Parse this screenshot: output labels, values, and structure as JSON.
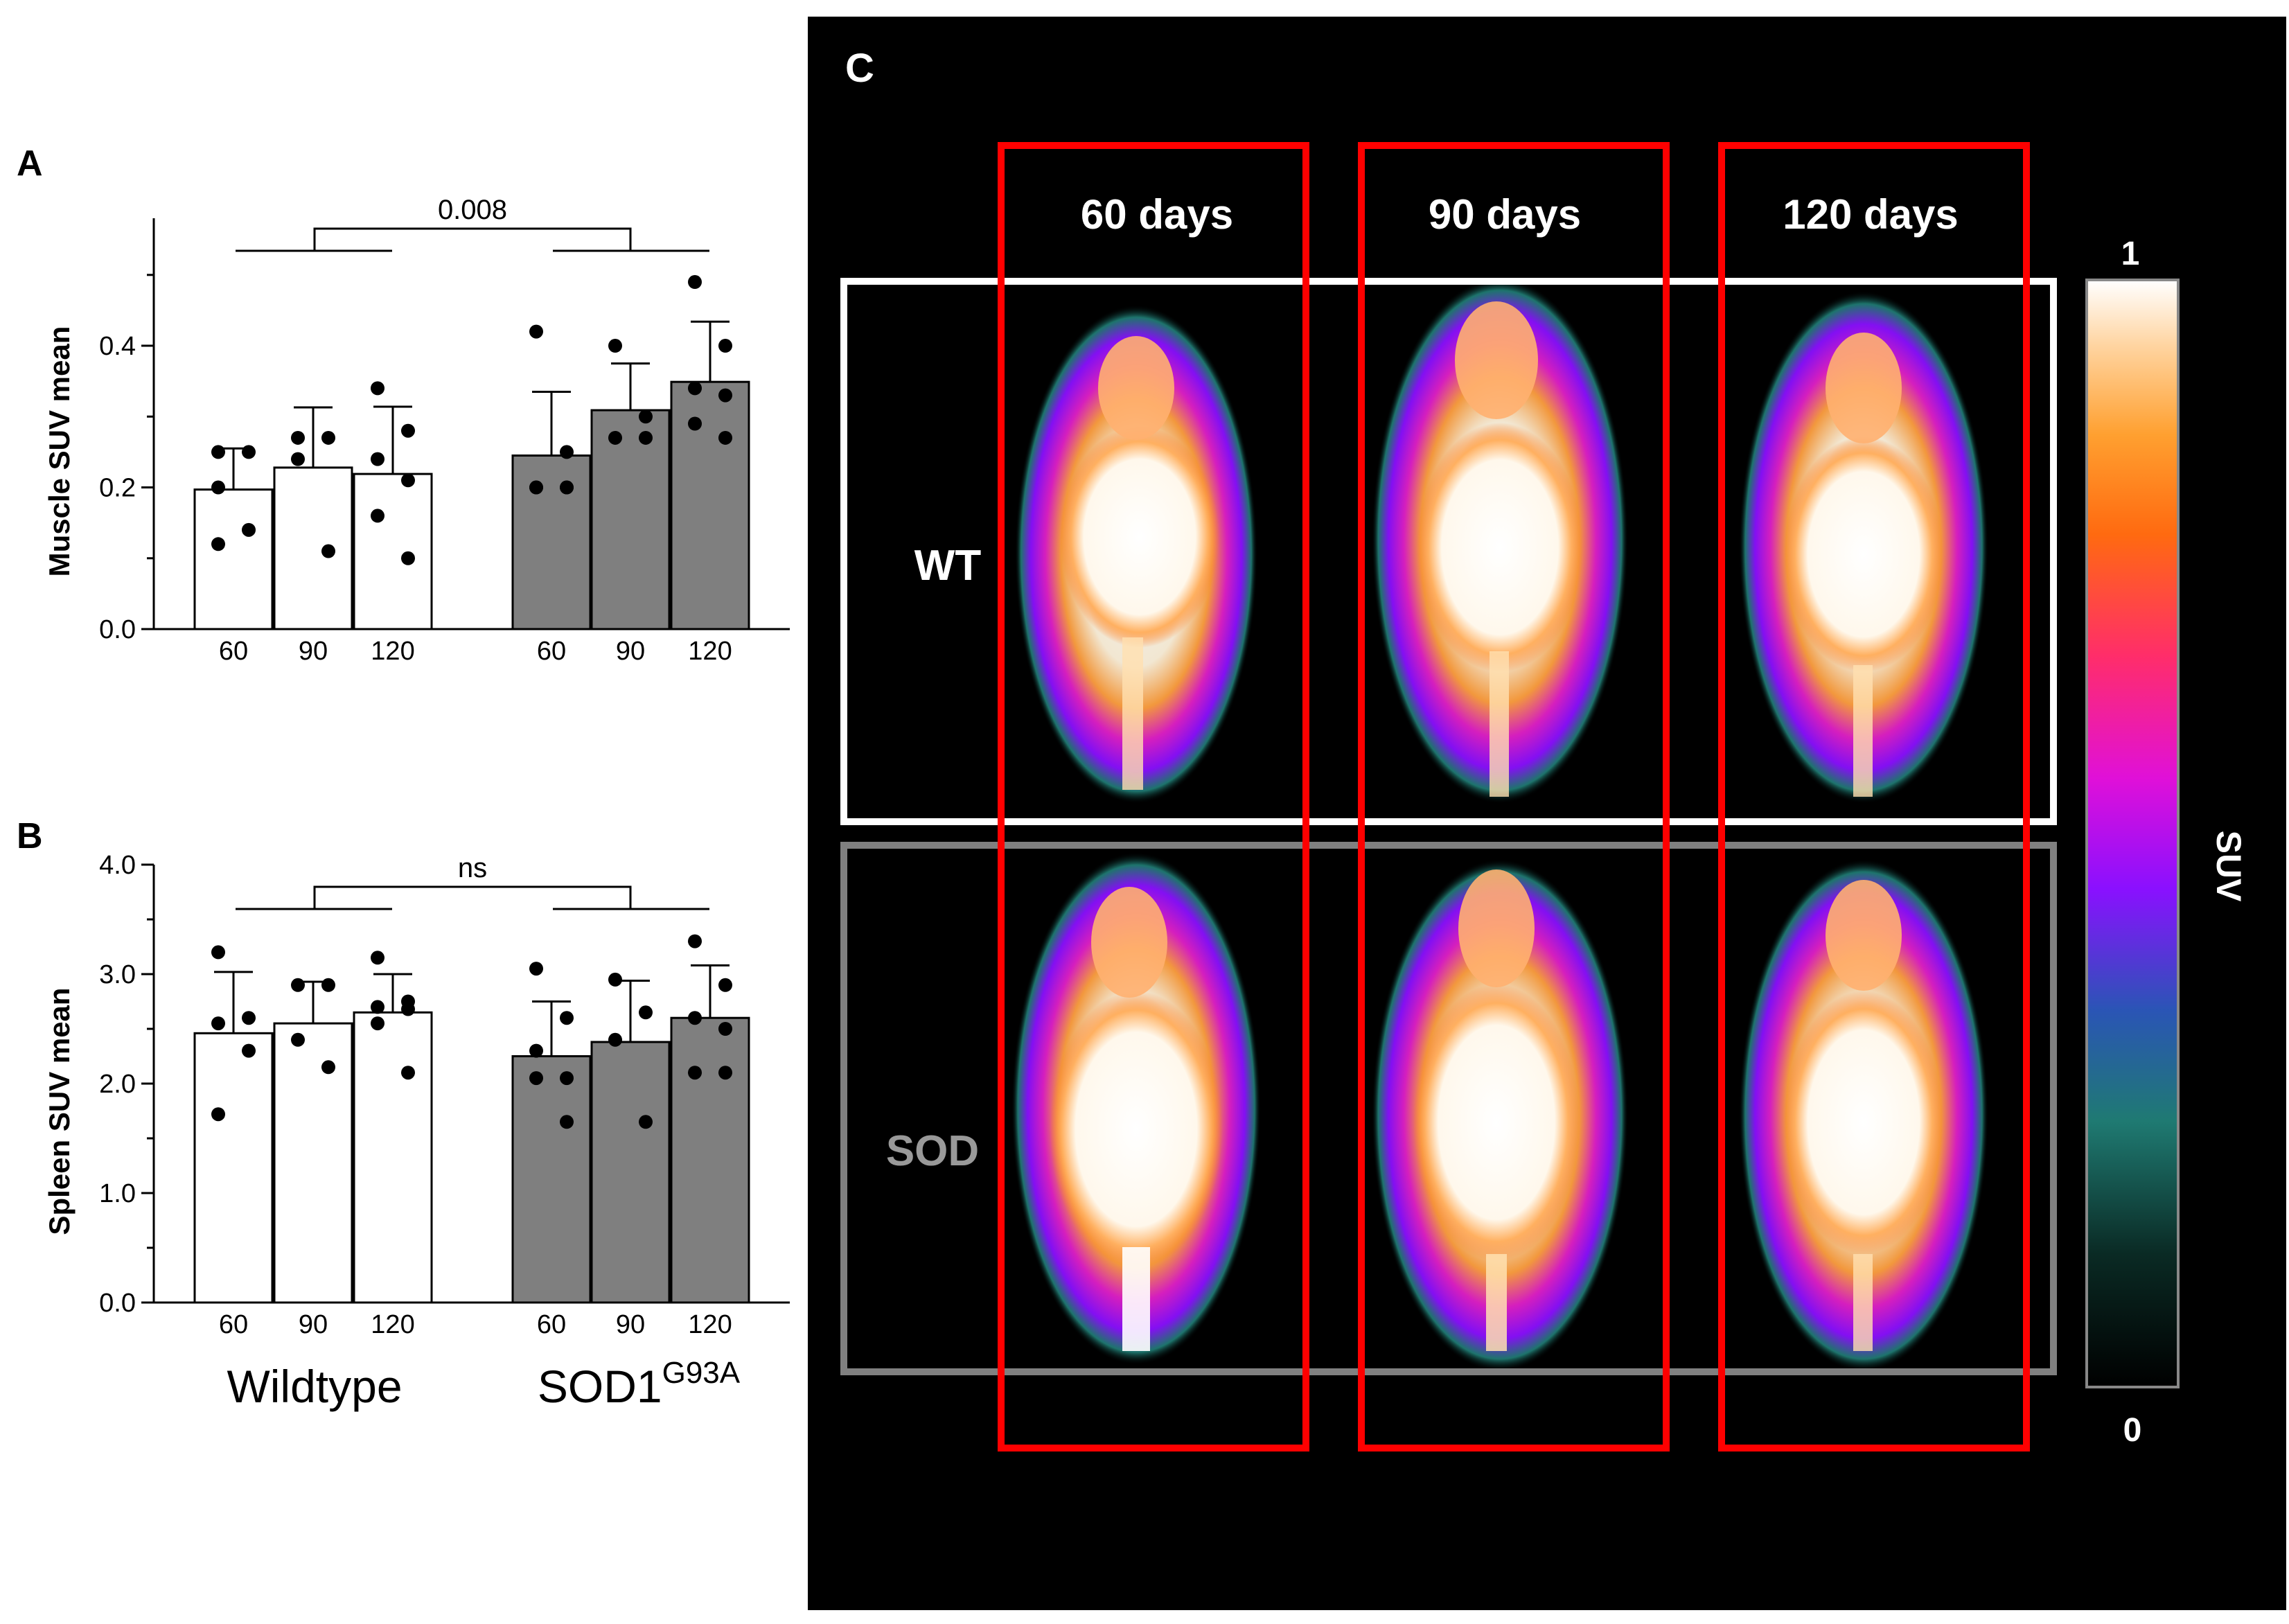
{
  "figure": {
    "panel_labels": {
      "a": "A",
      "b": "B",
      "c": "C"
    },
    "group_labels": {
      "wildtype": "Wildtype",
      "sod_base": "SOD1",
      "sod_sup": "G93A"
    }
  },
  "chart_data": [
    {
      "panel": "A",
      "type": "bar",
      "ylabel": "Muscle SUV mean",
      "ylim": [
        0,
        0.58
      ],
      "yticks": [
        "0.0",
        "0.2",
        "0.4"
      ],
      "ytick_values": [
        0,
        0.2,
        0.4
      ],
      "categories": [
        "60",
        "90",
        "120",
        "60",
        "90",
        "120"
      ],
      "groups": [
        "Wildtype",
        "SOD1G93A"
      ],
      "values": [
        0.197,
        0.228,
        0.219,
        0.245,
        0.309,
        0.349
      ],
      "sd": [
        0.058,
        0.085,
        0.095,
        0.09,
        0.066,
        0.085
      ],
      "points": [
        [
          0.25,
          0.25,
          0.2,
          0.14,
          0.12
        ],
        [
          0.27,
          0.27,
          0.24,
          0.11
        ],
        [
          0.34,
          0.28,
          0.24,
          0.21,
          0.16,
          0.1
        ],
        [
          0.42,
          0.25,
          0.2,
          0.2,
          0.2,
          0.2
        ],
        [
          0.4,
          0.3,
          0.27,
          0.27
        ],
        [
          0.49,
          0.4,
          0.34,
          0.33,
          0.29,
          0.27
        ]
      ],
      "colors": {
        "wildtype": "#ffffff",
        "sod": "#7f7f7f"
      },
      "significance": "0.008"
    },
    {
      "panel": "B",
      "type": "bar",
      "ylabel": "Spleen SUV mean",
      "ylim": [
        0,
        4.0
      ],
      "yticks": [
        "0.0",
        "1.0",
        "2.0",
        "3.0",
        "4.0"
      ],
      "ytick_values": [
        0,
        1,
        2,
        3,
        4
      ],
      "categories": [
        "60",
        "90",
        "120",
        "60",
        "90",
        "120"
      ],
      "groups": [
        "Wildtype",
        "SOD1G93A"
      ],
      "values": [
        2.46,
        2.55,
        2.65,
        2.25,
        2.38,
        2.6
      ],
      "sd": [
        0.56,
        0.38,
        0.35,
        0.5,
        0.56,
        0.48
      ],
      "points": [
        [
          3.2,
          2.6,
          2.55,
          2.3,
          1.72
        ],
        [
          2.9,
          2.9,
          2.4,
          2.15
        ],
        [
          3.15,
          2.75,
          2.7,
          2.68,
          2.55,
          2.1
        ],
        [
          3.05,
          2.6,
          2.3,
          2.05,
          2.05,
          1.65
        ],
        [
          2.95,
          2.65,
          2.4,
          1.65
        ],
        [
          3.3,
          2.9,
          2.6,
          2.5,
          2.1,
          2.1
        ]
      ],
      "colors": {
        "wildtype": "#ffffff",
        "sod": "#7f7f7f"
      },
      "significance": "ns"
    }
  ],
  "imaging": {
    "columns": [
      "60 days",
      "90 days",
      "120 days"
    ],
    "rows": [
      "WT",
      "SOD"
    ],
    "colorbar": {
      "max_label": "1",
      "min_label": "0",
      "title": "SUV"
    },
    "colors": {
      "frame_column": "#ff0000",
      "frame_wt": "#ffffff",
      "frame_sod": "#808080",
      "background": "#000000"
    }
  }
}
